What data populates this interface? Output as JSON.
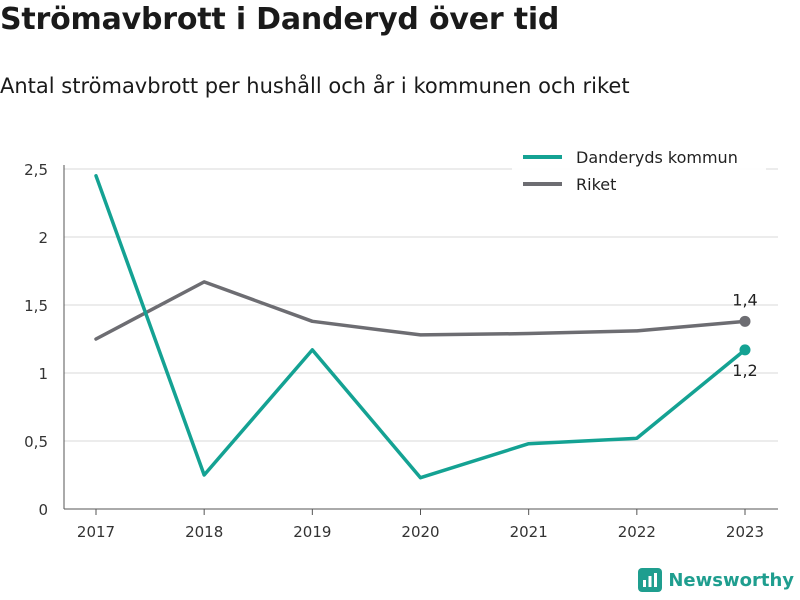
{
  "header": {
    "title": "Strömavbrott i Danderyd över tid",
    "subtitle": "Antal strömavbrott per hushåll och år i kommunen och riket"
  },
  "brand": {
    "name": "Newsworthy",
    "icon": "bar-chart-logo-icon"
  },
  "colors": {
    "danderyd": "#14a293",
    "riket": "#6d6d72",
    "grid": "#d9d9d9",
    "axis": "#555555"
  },
  "chart_data": {
    "type": "line",
    "x": [
      "2017",
      "2018",
      "2019",
      "2020",
      "2021",
      "2022",
      "2023"
    ],
    "ylim": [
      0,
      2.5
    ],
    "yticks": [
      0,
      0.5,
      1,
      1.5,
      2,
      2.5
    ],
    "ytick_labels": [
      "0",
      "0,5",
      "1",
      "1,5",
      "2",
      "2,5"
    ],
    "grid": true,
    "legend_position": "top-right",
    "series": [
      {
        "name": "Danderyds kommun",
        "color": "#14a293",
        "values": [
          2.45,
          0.25,
          1.17,
          0.23,
          0.48,
          0.52,
          1.17
        ],
        "end_label": "1,2"
      },
      {
        "name": "Riket",
        "color": "#6d6d72",
        "values": [
          1.25,
          1.67,
          1.38,
          1.28,
          1.29,
          1.31,
          1.38
        ],
        "end_label": "1,4"
      }
    ]
  }
}
